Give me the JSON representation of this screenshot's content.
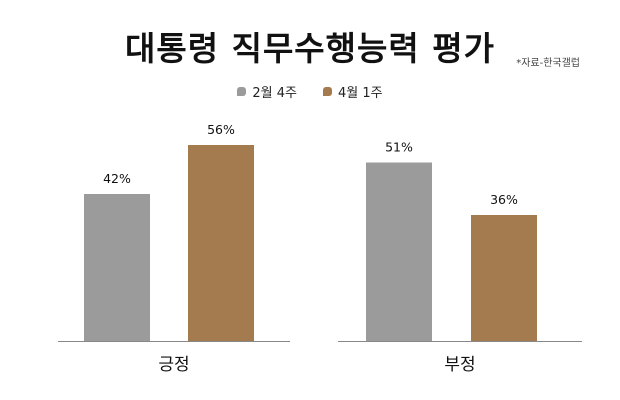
{
  "title": "대통령 직무수행능력 평가",
  "source": "*자료-한국갤럽",
  "colors": {
    "series1": "#9b9b9b",
    "series2": "#a47a4f",
    "axis": "#888888",
    "text": "#111111"
  },
  "chart_data": {
    "type": "bar",
    "categories": [
      "긍정",
      "부정"
    ],
    "series": [
      {
        "name": "2월 4주",
        "values": [
          42,
          51
        ],
        "labels": [
          "42%",
          "51%"
        ]
      },
      {
        "name": "4월 1주",
        "values": [
          56,
          36
        ],
        "labels": [
          "56%",
          "36%"
        ]
      }
    ],
    "ylim": [
      0,
      70
    ],
    "grid": false,
    "legend": "top-center"
  }
}
